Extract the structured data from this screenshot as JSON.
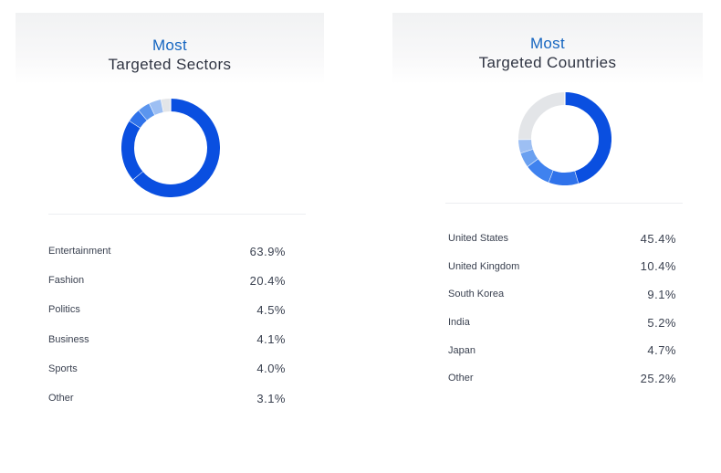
{
  "colors": {
    "accent": "#1565c0",
    "primary": "#0a4fe0",
    "secondary": "#3f82ef",
    "tertiary": "#8fb5f2",
    "muted": "#e3e5e8"
  },
  "cards": [
    {
      "title_accent": "Most",
      "title_main": "Targeted Sectors"
    },
    {
      "title_accent": "Most",
      "title_main": "Targeted Countries"
    }
  ],
  "chart_data": [
    {
      "type": "pie",
      "title": "Most Targeted Sectors",
      "categories": [
        "Entertainment",
        "Fashion",
        "Politics",
        "Business",
        "Sports",
        "Other"
      ],
      "values": [
        63.9,
        20.4,
        4.5,
        4.1,
        4.0,
        3.1
      ],
      "value_labels": [
        "63.9%",
        "20.4%",
        "4.5%",
        "4.1%",
        "4.0%",
        "3.1%"
      ],
      "colors": [
        "#0a4fe0",
        "#0a4fe0",
        "#2f72ea",
        "#5b95ee",
        "#9dbff3",
        "#e3e5e8"
      ]
    },
    {
      "type": "pie",
      "title": "Most Targeted Countries",
      "categories": [
        "United States",
        "United Kingdom",
        "South Korea",
        "India",
        "Japan",
        "Other"
      ],
      "values": [
        45.4,
        10.4,
        9.1,
        5.2,
        4.7,
        25.2
      ],
      "value_labels": [
        "45.4%",
        "10.4%",
        "9.1%",
        "5.2%",
        "4.7%",
        "25.2%"
      ],
      "colors": [
        "#0a4fe0",
        "#2f72ea",
        "#3f82ef",
        "#6aa0f0",
        "#9dbff3",
        "#e3e5e8"
      ]
    }
  ]
}
